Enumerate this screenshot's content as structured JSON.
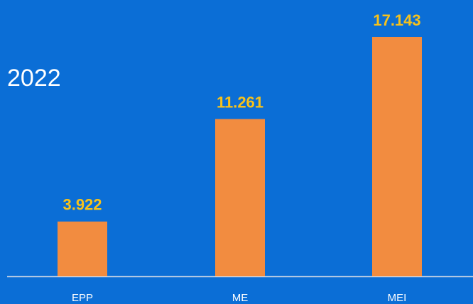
{
  "chart_data": {
    "type": "bar",
    "title": "2022",
    "categories": [
      "EPP",
      "ME",
      "MEI"
    ],
    "values": [
      3.922,
      11.261,
      17.143
    ],
    "color": "#f28c40",
    "label_color": "#f7c21b",
    "background": "#0b6ed6"
  }
}
